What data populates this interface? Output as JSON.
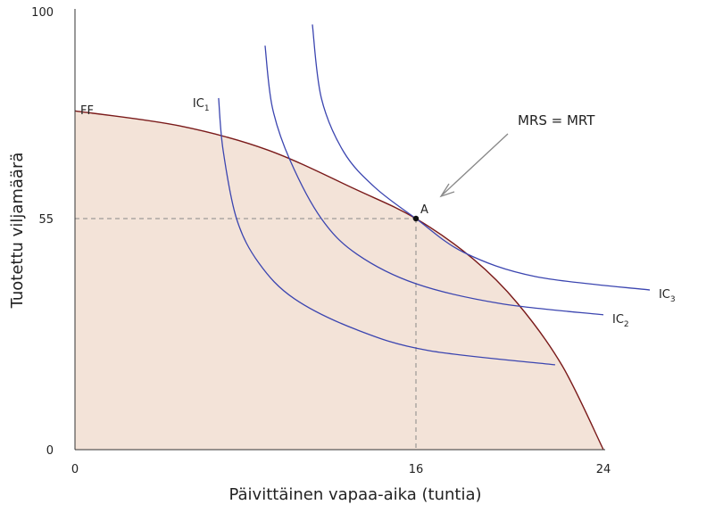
{
  "chart_data": {
    "type": "line",
    "xlabel": "Päivittäinen vapaa-aika (tuntia)",
    "ylabel": "Tuotettu viljamäärä",
    "xticks": [
      0,
      16,
      24
    ],
    "yticks": [
      0,
      55,
      100
    ],
    "xlim": [
      0,
      24
    ],
    "ylim": [
      0,
      100
    ],
    "grid": false,
    "colors": {
      "frontier": "#7a1a1a",
      "frontier_fill": "#f3e3d8",
      "indifference": "#3b45b0",
      "guide": "#888888",
      "arrow": "#888888"
    },
    "frontier": {
      "label": "FF",
      "points": [
        [
          0,
          78.4
        ],
        [
          4.86,
          75.2
        ],
        [
          9.05,
          69.9
        ],
        [
          13.24,
          61.2
        ],
        [
          16,
          55
        ],
        [
          18.44,
          45.4
        ],
        [
          20.34,
          34.8
        ],
        [
          22.25,
          19.9
        ],
        [
          24,
          0
        ]
      ]
    },
    "indifference_curves": [
      {
        "label": "IC",
        "sub": "1",
        "points": [
          [
            6.74,
            81.2
          ],
          [
            6.95,
            69.9
          ],
          [
            7.58,
            55
          ],
          [
            8.63,
            44.4
          ],
          [
            10.3,
            35.9
          ],
          [
            13.24,
            28.5
          ],
          [
            16.53,
            23.6
          ],
          [
            21.94,
            20.2
          ]
        ]
      },
      {
        "label": "IC",
        "sub": "2",
        "points": [
          [
            8.92,
            92.6
          ],
          [
            9.26,
            79.2
          ],
          [
            10.09,
            67.7
          ],
          [
            11.56,
            55
          ],
          [
            13.24,
            46.5
          ],
          [
            16,
            39.5
          ],
          [
            19.58,
            34.8
          ],
          [
            24,
            32.1
          ]
        ]
      },
      {
        "label": "IC",
        "sub": "3",
        "points": [
          [
            11.14,
            97.2
          ],
          [
            11.56,
            81.2
          ],
          [
            12.61,
            69.5
          ],
          [
            14.07,
            61.8
          ],
          [
            16,
            55
          ],
          [
            18.06,
            46.9
          ],
          [
            21.1,
            41.2
          ],
          [
            25.98,
            38.0
          ]
        ]
      }
    ],
    "point": {
      "label": "A",
      "x": 16,
      "y": 55
    },
    "annotation": {
      "text": "MRS = MRT"
    }
  }
}
